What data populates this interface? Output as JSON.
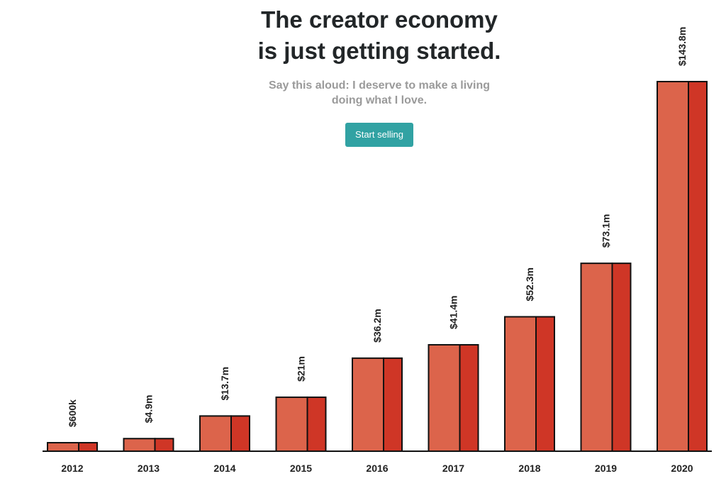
{
  "header": {
    "title_line1": "The creator economy",
    "title_line2": "is just getting started.",
    "subtitle": "Say this aloud: I deserve to make a living doing what I love.",
    "cta_label": "Start selling"
  },
  "colors": {
    "bar_front": "#dc644b",
    "bar_side": "#cf3626",
    "cta": "#31a2a3",
    "title": "#222628",
    "subtitle": "#9a9a9a"
  },
  "chart_data": {
    "type": "bar",
    "title": "",
    "xlabel": "",
    "ylabel": "",
    "categories": [
      "2012",
      "2013",
      "2014",
      "2015",
      "2016",
      "2017",
      "2018",
      "2019",
      "2020"
    ],
    "values": [
      0.6,
      4.9,
      13.7,
      21,
      36.2,
      41.4,
      52.3,
      73.1,
      143.8
    ],
    "value_labels": [
      "$600k",
      "$4.9m",
      "$13.7m",
      "$21m",
      "$36.2m",
      "$41.4m",
      "$52.3m",
      "$73.1m",
      "$143.8m"
    ],
    "ylim": [
      0,
      143.8
    ],
    "grid": false
  }
}
